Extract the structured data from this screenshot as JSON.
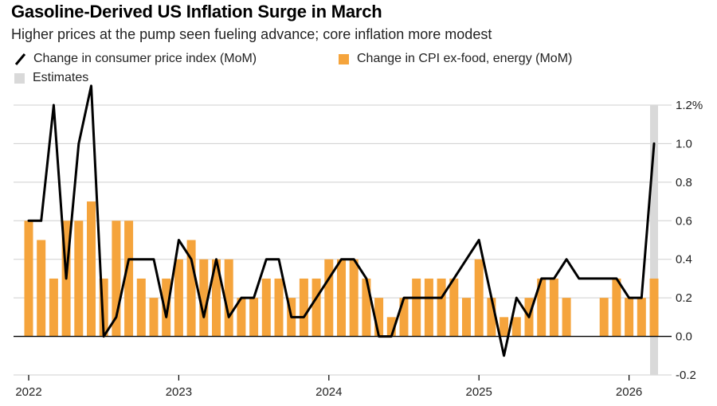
{
  "chart_data": {
    "type": "bar",
    "title": "Gasoline-Derived US Inflation Surge in March",
    "subtitle": "Higher prices at the pump seen fueling advance; core inflation more modest",
    "legend": [
      {
        "label": "Change in consumer price index (MoM)",
        "kind": "line",
        "color": "#000000"
      },
      {
        "label": "Change in CPI ex-food, energy (MoM)",
        "kind": "bar",
        "color": "#f5a43c"
      },
      {
        "label": "Estimates",
        "kind": "shade",
        "color": "#d9d9d9"
      }
    ],
    "ylim": [
      -0.2,
      1.2
    ],
    "yticks": [
      1.2,
      1.0,
      0.8,
      0.6,
      0.4,
      0.2,
      0.0,
      -0.2
    ],
    "ytick_labels": [
      "1.2%",
      "1.0",
      "0.8",
      "0.6",
      "0.4",
      "0.2",
      "0.0",
      "-0.2"
    ],
    "xticks": [
      {
        "label": "2022",
        "index": 0
      },
      {
        "label": "2023",
        "index": 12
      },
      {
        "label": "2024",
        "index": 24
      },
      {
        "label": "2025",
        "index": 36
      },
      {
        "label": "2026",
        "index": 48
      }
    ],
    "start": "Jan 2022",
    "estimate_index": 50,
    "series": [
      {
        "name": "Change in consumer price index (MoM)",
        "type": "line",
        "values": [
          0.6,
          0.6,
          1.2,
          0.3,
          1.0,
          1.3,
          0.0,
          0.1,
          0.4,
          0.4,
          0.4,
          0.1,
          0.5,
          0.4,
          0.1,
          0.4,
          0.1,
          0.2,
          0.2,
          0.4,
          0.4,
          0.1,
          0.1,
          0.2,
          0.3,
          0.4,
          0.4,
          0.3,
          0.0,
          0.0,
          0.2,
          0.2,
          0.2,
          0.2,
          0.3,
          0.4,
          0.5,
          0.2,
          -0.1,
          0.2,
          0.1,
          0.3,
          0.3,
          0.4,
          0.3,
          null,
          null,
          0.3,
          0.2,
          0.2,
          1.0
        ]
      },
      {
        "name": "Change in CPI ex-food, energy (MoM)",
        "type": "bar",
        "values": [
          0.6,
          0.5,
          0.3,
          0.6,
          0.6,
          0.7,
          0.3,
          0.6,
          0.6,
          0.3,
          0.2,
          0.3,
          0.4,
          0.5,
          0.4,
          0.4,
          0.4,
          0.2,
          0.2,
          0.3,
          0.3,
          0.2,
          0.3,
          0.3,
          0.4,
          0.4,
          0.4,
          0.3,
          0.2,
          0.1,
          0.2,
          0.3,
          0.3,
          0.3,
          0.3,
          0.2,
          0.4,
          0.2,
          0.1,
          0.1,
          0.2,
          0.3,
          0.3,
          0.2,
          null,
          null,
          0.2,
          0.3,
          0.2,
          0.2,
          0.3
        ]
      }
    ]
  }
}
